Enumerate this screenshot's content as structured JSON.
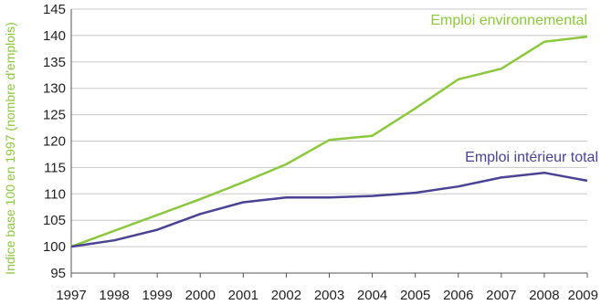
{
  "chart_data": {
    "type": "line",
    "ylabel": "Indice base 100 en 1997 (nombre d'emplois)",
    "ylim": [
      95,
      145
    ],
    "yticks": [
      95,
      100,
      105,
      110,
      115,
      120,
      125,
      130,
      135,
      140,
      145
    ],
    "x": [
      "1997",
      "1998",
      "1999",
      "2000",
      "2001",
      "2002",
      "2003",
      "2004",
      "2005",
      "2006",
      "2007",
      "2008",
      "2009"
    ],
    "grid": "horizontal",
    "series": [
      {
        "name": "Emploi environnemental",
        "color": "#8dc63f",
        "values": [
          100,
          103,
          106,
          109,
          112.2,
          115.6,
          120.2,
          121,
          126.2,
          131.7,
          133.7,
          138.8,
          139.8
        ]
      },
      {
        "name": "Emploi intérieur total",
        "color": "#4a4393",
        "values": [
          100,
          101.2,
          103.2,
          106.2,
          108.4,
          109.3,
          109.3,
          109.6,
          110.2,
          111.4,
          113.1,
          114,
          112.5
        ]
      }
    ],
    "ylabel_color": "#8dc63f"
  }
}
